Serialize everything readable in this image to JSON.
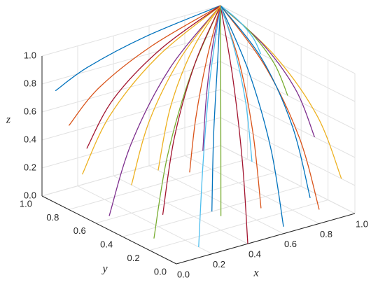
{
  "chart_data": {
    "type": "line3d",
    "xlabel": "x",
    "ylabel": "y",
    "zlabel": "z",
    "xlim": [
      0,
      1
    ],
    "ylim": [
      0,
      1
    ],
    "zlim": [
      0,
      1
    ],
    "xticks": [
      {
        "value": 0,
        "label": "0.0"
      },
      0.2,
      0.4,
      0.6,
      0.8,
      {
        "value": 1,
        "label": "1.0"
      }
    ],
    "yticks": [
      {
        "value": 0,
        "label": "0.0"
      },
      0.2,
      0.4,
      0.6,
      0.8,
      {
        "value": 1,
        "label": "1.0"
      }
    ],
    "zticks": [
      {
        "value": 0,
        "label": "0.0"
      },
      0.2,
      0.4,
      0.6,
      0.8,
      {
        "value": 1,
        "label": "1.0"
      }
    ],
    "grid": true,
    "series": [
      {
        "color": "#0072BD",
        "x": [
          0,
          0.2,
          0.55,
          1
        ],
        "y": [
          0.9,
          0.92,
          0.96,
          1
        ],
        "z": [
          0.8,
          0.89,
          0.96,
          1
        ]
      },
      {
        "color": "#D95319",
        "x": [
          0,
          0.2,
          0.55,
          1
        ],
        "y": [
          0.8,
          0.84,
          0.91,
          1
        ],
        "z": [
          0.6,
          0.78,
          0.92,
          1
        ]
      },
      {
        "color": "#EDB120",
        "x": [
          0,
          0.2,
          0.55,
          1
        ],
        "y": [
          0.7,
          0.76,
          0.87,
          1
        ],
        "z": [
          0.3,
          0.62,
          0.86,
          1
        ]
      },
      {
        "color": "#7E2F8E",
        "x": [
          0,
          0.2,
          0.55,
          1
        ],
        "y": [
          0.5,
          0.6,
          0.78,
          1
        ],
        "z": [
          0.1,
          0.5,
          0.82,
          1
        ]
      },
      {
        "color": "#77AC30",
        "x": [
          0.1,
          0.28,
          0.6,
          1
        ],
        "y": [
          0.3,
          0.44,
          0.69,
          1
        ],
        "z": [
          0,
          0.45,
          0.8,
          1
        ]
      },
      {
        "color": "#4DBEEE",
        "x": [
          0.2,
          0.36,
          0.64,
          1
        ],
        "y": [
          0.1,
          0.28,
          0.6,
          1
        ],
        "z": [
          0,
          0.45,
          0.8,
          1
        ]
      },
      {
        "color": "#A2142F",
        "x": [
          0.4,
          0.52,
          0.73,
          1
        ],
        "y": [
          0,
          0.2,
          0.55,
          1
        ],
        "z": [
          0,
          0.45,
          0.8,
          1
        ]
      },
      {
        "color": "#0072BD",
        "x": [
          0.6,
          0.68,
          0.82,
          1
        ],
        "y": [
          0,
          0.2,
          0.55,
          1
        ],
        "z": [
          0.05,
          0.48,
          0.81,
          1
        ]
      },
      {
        "color": "#D95319",
        "x": [
          0.8,
          0.84,
          0.91,
          1
        ],
        "y": [
          0,
          0.2,
          0.55,
          1
        ],
        "z": [
          0.1,
          0.5,
          0.82,
          1
        ]
      },
      {
        "color": "#EDB120",
        "x": [
          1,
          1,
          1,
          1
        ],
        "y": [
          0.1,
          0.28,
          0.6,
          1
        ],
        "z": [
          0.2,
          0.56,
          0.84,
          1
        ]
      },
      {
        "color": "#7E2F8E",
        "x": [
          1,
          1,
          1,
          1
        ],
        "y": [
          0.3,
          0.44,
          0.69,
          1
        ],
        "z": [
          0.4,
          0.67,
          0.88,
          1
        ]
      },
      {
        "color": "#77AC30",
        "x": [
          1,
          1,
          1,
          1
        ],
        "y": [
          0.5,
          0.6,
          0.78,
          1
        ],
        "z": [
          0.6,
          0.78,
          0.92,
          1
        ]
      },
      {
        "color": "#4DBEEE",
        "x": [
          1,
          1,
          1,
          1
        ],
        "y": [
          0.7,
          0.76,
          0.87,
          1
        ],
        "z": [
          0.8,
          0.89,
          0.96,
          1
        ]
      },
      {
        "color": "#A2142F",
        "x": [
          0.3,
          0.44,
          0.69,
          1
        ],
        "y": [
          0.5,
          0.6,
          0.78,
          1
        ],
        "z": [
          0,
          0.45,
          0.8,
          1
        ]
      },
      {
        "color": "#0072BD",
        "x": [
          0.5,
          0.6,
          0.78,
          1
        ],
        "y": [
          0.4,
          0.52,
          0.73,
          1
        ],
        "z": [
          0,
          0.45,
          0.8,
          1
        ]
      },
      {
        "color": "#D95319",
        "x": [
          0.7,
          0.76,
          0.87,
          1
        ],
        "y": [
          0.3,
          0.44,
          0.69,
          1
        ],
        "z": [
          0,
          0.45,
          0.8,
          1
        ]
      },
      {
        "color": "#EDB120",
        "x": [
          0.2,
          0.36,
          0.64,
          1
        ],
        "y": [
          0.6,
          0.68,
          0.82,
          1
        ],
        "z": [
          0.2,
          0.56,
          0.84,
          1
        ]
      },
      {
        "color": "#7E2F8E",
        "x": [
          0.6,
          0.68,
          0.82,
          1
        ],
        "y": [
          0.6,
          0.68,
          0.82,
          1
        ],
        "z": [
          0.3,
          0.62,
          0.86,
          1
        ]
      },
      {
        "color": "#77AC30",
        "x": [
          0.4,
          0.52,
          0.73,
          1
        ],
        "y": [
          0.2,
          0.36,
          0.64,
          1
        ],
        "z": [
          0.1,
          0.5,
          0.82,
          1
        ]
      },
      {
        "color": "#4DBEEE",
        "x": [
          0.8,
          0.84,
          0.91,
          1
        ],
        "y": [
          0.5,
          0.6,
          0.78,
          1
        ],
        "z": [
          0.2,
          0.56,
          0.84,
          1
        ]
      },
      {
        "color": "#A2142F",
        "x": [
          0.1,
          0.28,
          0.6,
          1
        ],
        "y": [
          0.8,
          0.84,
          0.91,
          1
        ],
        "z": [
          0.4,
          0.67,
          0.88,
          1
        ]
      },
      {
        "color": "#0072BD",
        "x": [
          0.9,
          0.92,
          0.96,
          1
        ],
        "y": [
          0.2,
          0.36,
          0.64,
          1
        ],
        "z": [
          0.05,
          0.48,
          0.81,
          1
        ]
      },
      {
        "color": "#D95319",
        "x": [
          0.3,
          0.44,
          0.69,
          1
        ],
        "y": [
          0.3,
          0.44,
          0.69,
          1
        ],
        "z": [
          0.4,
          0.67,
          0.88,
          1
        ]
      },
      {
        "color": "#EDB120",
        "x": [
          0.5,
          0.6,
          0.78,
          1
        ],
        "y": [
          0.8,
          0.84,
          0.91,
          1
        ],
        "z": [
          0.1,
          0.5,
          0.82,
          1
        ]
      }
    ]
  }
}
